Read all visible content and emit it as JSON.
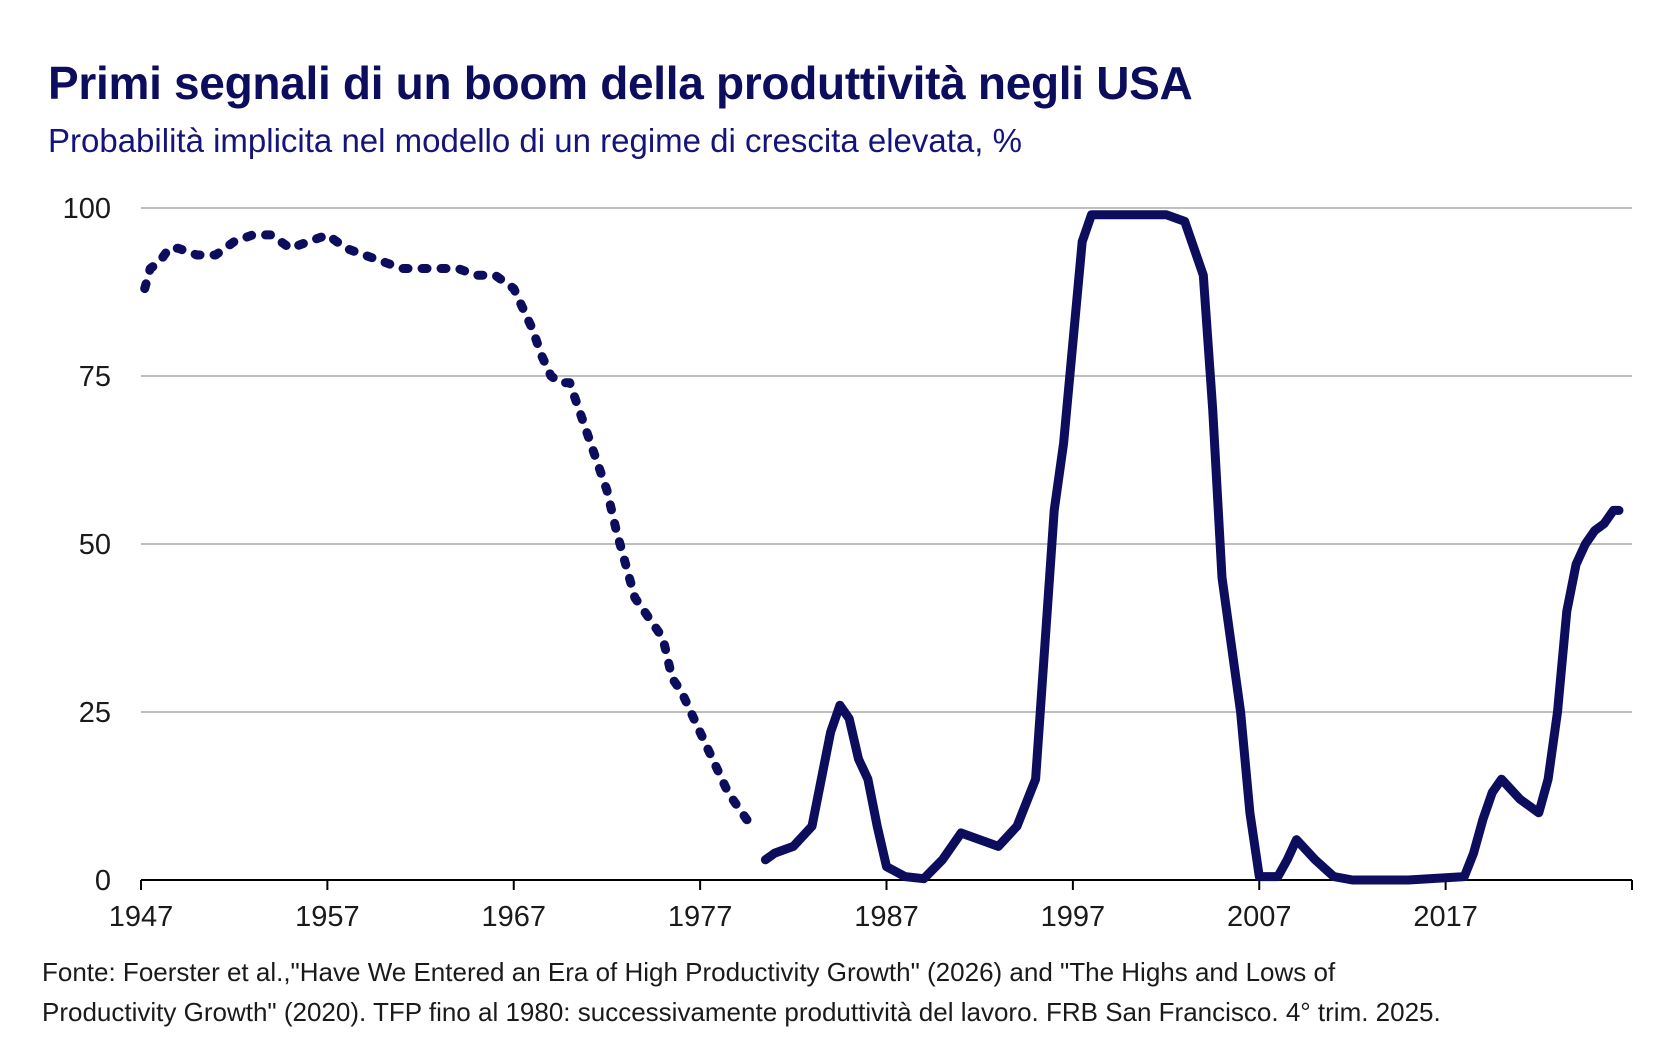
{
  "title": "Primi segnali di un boom della produttività negli USA",
  "subtitle": "Probabilità implicita nel modello di un regime di crescita elevata, %",
  "source_line1": "Fonte: Foerster et al.,\"Have We Entered an Era of High Productivity Growth\" (2026) and \"The Highs and Lows of",
  "source_line2": "Productivity Growth\" (2020). TFP fino al 1980: successivamente produttività del lavoro. FRB San Francisco. 4° trim. 2025.",
  "colors": {
    "line": "#0d0d5e",
    "grid": "#bfbfbf",
    "axis": "#000000"
  },
  "chart_data": {
    "type": "line",
    "xlim": [
      1947,
      2027
    ],
    "ylim": [
      0,
      100
    ],
    "x_ticks": [
      "1947",
      "1957",
      "1967",
      "1977",
      "1987",
      "1997",
      "2007",
      "2017"
    ],
    "y_ticks": [
      "0",
      "25",
      "50",
      "75",
      "100"
    ],
    "grid": "horizontal",
    "series": [
      {
        "style": "dotted",
        "x": [
          1947.2,
          1947.5,
          1948,
          1948.5,
          1949,
          1950,
          1951,
          1952,
          1953,
          1954,
          1955,
          1956,
          1957,
          1958,
          1959,
          1960,
          1961,
          1962,
          1963,
          1964,
          1965,
          1966,
          1967,
          1967.5,
          1968,
          1968.5,
          1969,
          1969.5,
          1970,
          1970.5,
          1971,
          1971.5,
          1972,
          1972.5,
          1973,
          1973.5,
          1974,
          1974.5,
          1975,
          1975.5,
          1976,
          1976.5,
          1977,
          1977.5,
          1978,
          1978.5,
          1979,
          1979.5,
          1980
        ],
        "y": [
          88,
          91,
          92,
          94,
          94,
          93,
          93,
          95,
          96,
          96,
          94,
          95,
          96,
          94,
          93,
          92,
          91,
          91,
          91,
          91,
          90,
          90,
          88,
          85,
          82,
          78,
          75,
          74,
          74,
          70,
          66,
          62,
          58,
          52,
          47,
          42,
          40,
          38,
          36,
          30,
          28,
          25,
          22,
          19,
          16,
          13,
          11,
          9,
          8
        ]
      },
      {
        "style": "solid",
        "x": [
          1980.5,
          1981,
          1982,
          1983,
          1983.5,
          1984,
          1984.5,
          1985,
          1985.5,
          1986,
          1986.5,
          1987,
          1988,
          1989,
          1990,
          1991,
          1992,
          1993,
          1994,
          1995,
          1995.5,
          1996,
          1996.5,
          1997,
          1997.5,
          1998,
          1999,
          2000,
          2001,
          2002,
          2003,
          2004,
          2004.5,
          2005,
          2005.5,
          2006,
          2006.5,
          2007,
          2008,
          2008.5,
          2009,
          2010,
          2011,
          2012,
          2015,
          2018,
          2018.5,
          2019,
          2019.5,
          2020,
          2021,
          2022,
          2022.5,
          2023,
          2023.5,
          2024,
          2024.5,
          2025,
          2025.5,
          2026,
          2026.3
        ],
        "y": [
          3,
          4,
          5,
          8,
          15,
          22,
          26,
          24,
          18,
          15,
          8,
          2,
          0.5,
          0.2,
          3,
          7,
          6,
          5,
          8,
          15,
          35,
          55,
          65,
          80,
          95,
          99,
          99,
          99,
          99,
          99,
          98,
          90,
          70,
          45,
          35,
          25,
          10,
          0.5,
          0.5,
          3,
          6,
          3,
          0.5,
          0,
          0,
          0.5,
          4,
          9,
          13,
          15,
          12,
          10,
          15,
          25,
          40,
          47,
          50,
          52,
          53,
          55,
          55
        ]
      }
    ]
  }
}
